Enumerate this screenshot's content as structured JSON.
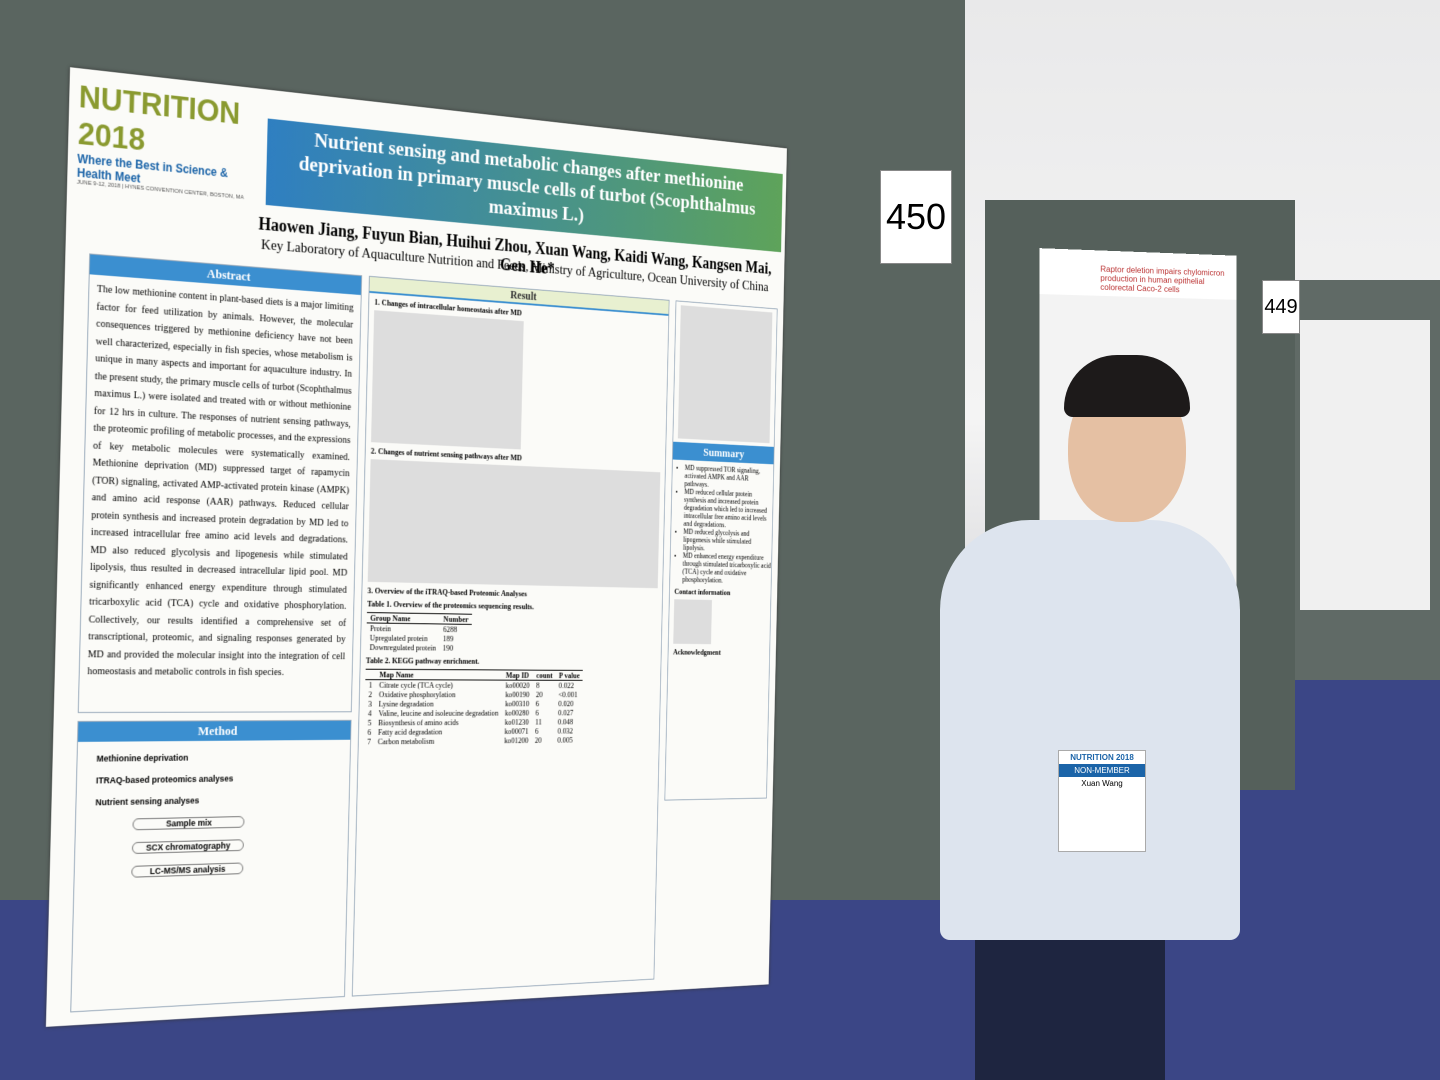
{
  "poster": {
    "conference": {
      "name": "NUTRITION",
      "year": "2018",
      "tagline": "Where the Best in Science & Health Meet",
      "dates": "JUNE 9-12, 2018 | HYNES CONVENTION CENTER, BOSTON, MA"
    },
    "title": "Nutrient sensing and metabolic changes after methionine deprivation in primary muscle cells of turbot (Scophthalmus maximus L.)",
    "authors": "Haowen Jiang, Fuyun Bian, Huihui Zhou, Xuan Wang, Kaidi Wang, Kangsen Mai, Gen He*",
    "affiliation": "Key Laboratory of Aquaculture Nutrition and Feeds, Ministry of Agriculture, Ocean University of China",
    "abstract": {
      "heading": "Abstract",
      "text": "The low methionine content in plant-based diets is a major limiting factor for feed utilization by animals. However, the molecular consequences triggered by methionine deficiency have not been well characterized, especially in fish species, whose metabolism is unique in many aspects and important for aquaculture industry. In the present study, the primary muscle cells of turbot (Scophthalmus maximus L.) were isolated and treated with or without methionine for 12 hrs in culture. The responses of nutrient sensing pathways, the proteomic profiling of metabolic processes, and the expressions of key metabolic molecules were systematically examined. Methionine deprivation (MD) suppressed target of rapamycin (TOR) signaling, activated AMP-activated protein kinase (AMPK) and amino acid response (AAR) pathways. Reduced cellular protein synthesis and increased protein degradation by MD led to increased intracellular free amino acid levels and degradations. MD also reduced glycolysis and lipogenesis while stimulated lipolysis, thus resulted in decreased intracellular lipid pool. MD significantly enhanced energy expenditure through stimulated tricarboxylic acid (TCA) cycle and oxidative phosphorylation. Collectively, our results identified a comprehensive set of transcriptional, proteomic, and signaling responses generated by MD and provided the molecular insight into the integration of cell homeostasis and metabolic controls in fish species."
    },
    "method": {
      "heading": "Method",
      "steps": [
        "Methionine deprivation",
        "ITRAQ-based proteomics analyses",
        "Nutrient sensing analyses",
        "Sample mix",
        "SCX chromatography",
        "LC-MS/MS analysis"
      ]
    },
    "result": {
      "heading": "Result",
      "sections": [
        "1. Changes of intracellular homeostasis after MD",
        "2. Changes of nutrient sensing pathways after MD",
        "3. Overview of the iTRAQ-based Proteomic Analyses"
      ]
    },
    "table1": {
      "caption": "Table 1.  Overview of the proteomics sequencing results.",
      "rows": [
        [
          "Group Name",
          "Number"
        ],
        [
          "Protein",
          "6288"
        ],
        [
          "Upregulated protein",
          "189"
        ],
        [
          "Downregulated protein",
          "190"
        ]
      ]
    },
    "table2": {
      "caption": "Table 2.  KEGG pathway enrichment.",
      "rows": [
        [
          "",
          "Map Name",
          "Map ID",
          "count",
          "P value"
        ],
        [
          "1",
          "Citrate cycle (TCA cycle)",
          "ko00020",
          "8",
          "0.022"
        ],
        [
          "2",
          "Oxidative phosphorylation",
          "ko00190",
          "20",
          "<0.001"
        ],
        [
          "3",
          "Lysine degradation",
          "ko00310",
          "6",
          "0.020"
        ],
        [
          "4",
          "Valine, leucine and isoleucine degradation",
          "ko00280",
          "6",
          "0.027"
        ],
        [
          "5",
          "Biosynthesis of amino acids",
          "ko01230",
          "11",
          "0.048"
        ],
        [
          "6",
          "Fatty acid degradation",
          "ko00071",
          "6",
          "0.032"
        ],
        [
          "7",
          "Carbon metabolism",
          "ko01200",
          "20",
          "0.005"
        ]
      ]
    },
    "summary": {
      "heading": "Summary",
      "items": [
        "MD suppressed TOR signaling, activated AMPK and AAR pathways.",
        "MD reduced cellular protein synthesis and increased protein degradation which led to increased intracellular free amino acid levels and degradations.",
        "MD reduced glycolysis and lipogenesis while stimulated lipolysis.",
        "MD enhanced energy expenditure through stimulated tricarboxylic acid (TCA) cycle and oxidative phosphorylation."
      ]
    },
    "contact": "Contact information",
    "acknowledgment": "Acknowledgment"
  },
  "board_numbers": [
    "450",
    "449"
  ],
  "neighbor_poster_title": "Raptor deletion impairs chylomicron production in human epithelial colorectal Caco-2 cells",
  "badge": {
    "event": "NUTRITION 2018",
    "type": "NON-MEMBER",
    "name": "Xuan Wang"
  }
}
